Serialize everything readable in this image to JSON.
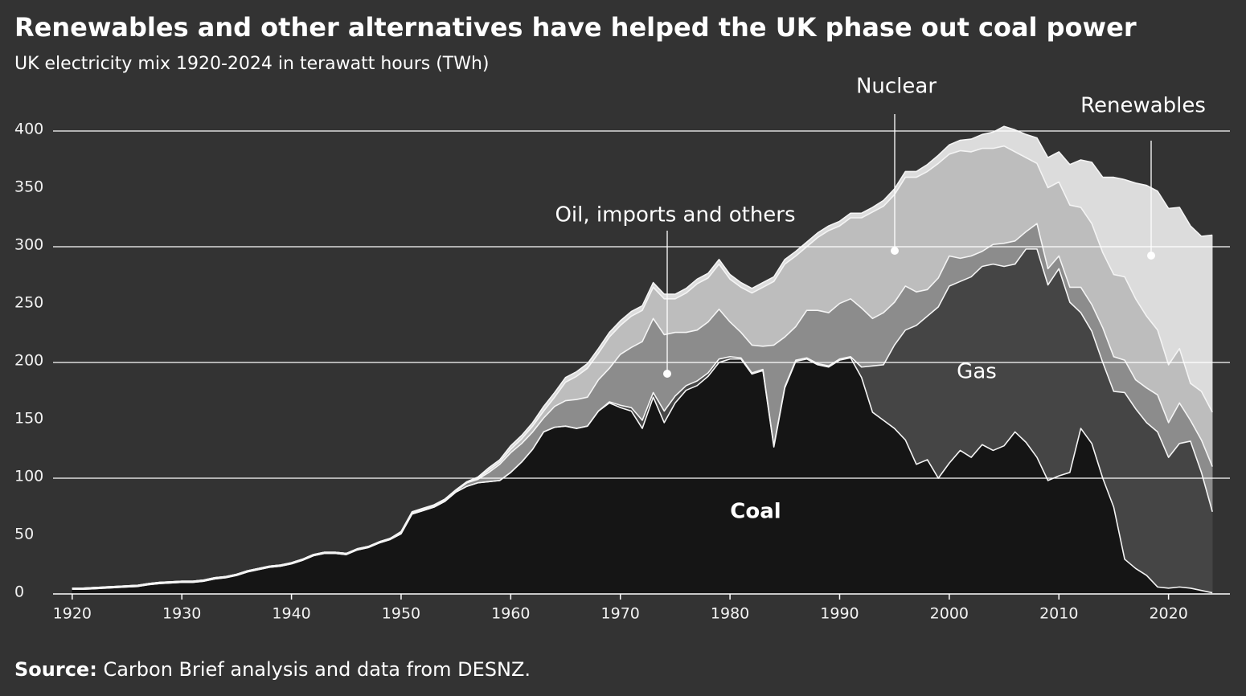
{
  "chart_data": {
    "type": "stacked-area",
    "title": "Renewables and other alternatives have helped the UK phase out coal power",
    "subtitle": "UK electricity mix 1920-2024 in terawatt hours (TWh)",
    "source_label": "Source:",
    "source_text": "Carbon Brief analysis and data from DESNZ.",
    "x": [
      1920,
      1921,
      1922,
      1923,
      1924,
      1925,
      1926,
      1927,
      1928,
      1929,
      1930,
      1931,
      1932,
      1933,
      1934,
      1935,
      1936,
      1937,
      1938,
      1939,
      1940,
      1941,
      1942,
      1943,
      1944,
      1945,
      1946,
      1947,
      1948,
      1949,
      1950,
      1951,
      1952,
      1953,
      1954,
      1955,
      1956,
      1957,
      1958,
      1959,
      1960,
      1961,
      1962,
      1963,
      1964,
      1965,
      1966,
      1967,
      1968,
      1969,
      1970,
      1971,
      1972,
      1973,
      1974,
      1975,
      1976,
      1977,
      1978,
      1979,
      1980,
      1981,
      1982,
      1983,
      1984,
      1985,
      1986,
      1987,
      1988,
      1989,
      1990,
      1991,
      1992,
      1993,
      1994,
      1995,
      1996,
      1997,
      1998,
      1999,
      2000,
      2001,
      2002,
      2003,
      2004,
      2005,
      2006,
      2007,
      2008,
      2009,
      2010,
      2011,
      2012,
      2013,
      2014,
      2015,
      2016,
      2017,
      2018,
      2019,
      2020,
      2021,
      2022,
      2023,
      2024
    ],
    "series": [
      {
        "name": "Coal",
        "color": "#151515",
        "values": [
          4,
          4,
          4.5,
          5,
          5.5,
          6,
          6.5,
          8,
          9,
          9.5,
          10,
          10,
          11,
          13,
          14,
          16,
          19,
          21,
          23,
          24,
          26,
          29,
          33,
          35,
          35,
          34,
          38,
          40,
          44,
          47,
          52,
          69,
          72,
          75,
          80,
          88,
          93,
          96,
          97,
          98,
          105,
          114,
          125,
          140,
          144,
          145,
          143,
          145,
          158,
          165,
          161,
          158,
          143,
          170,
          148,
          165,
          176,
          180,
          188,
          200,
          203,
          203,
          190,
          193,
          127,
          178,
          201,
          203,
          198,
          196,
          202,
          204,
          187,
          157,
          150,
          143,
          133,
          112,
          116,
          100,
          113,
          124,
          118,
          129,
          124,
          128,
          140,
          131,
          118,
          98,
          102,
          105,
          143,
          130,
          100,
          75,
          30,
          22,
          16,
          6,
          5,
          6,
          5,
          3,
          1
        ]
      },
      {
        "name": "Gas",
        "color": "#454545",
        "values": [
          0,
          0,
          0,
          0,
          0,
          0,
          0,
          0,
          0,
          0,
          0,
          0,
          0,
          0,
          0,
          0,
          0,
          0,
          0,
          0,
          0,
          0,
          0,
          0,
          0,
          0,
          0,
          0,
          0,
          0,
          0,
          0,
          0,
          0,
          0,
          0,
          0,
          0,
          0,
          0,
          0,
          0,
          0,
          0,
          0,
          0,
          0,
          0,
          0,
          1,
          2,
          3,
          7,
          4,
          10,
          6,
          4,
          4,
          3,
          3,
          2,
          1,
          1,
          1,
          1,
          1,
          1,
          1,
          1,
          1,
          1,
          1,
          9,
          40,
          48,
          72,
          95,
          120,
          124,
          148,
          153,
          146,
          156,
          154,
          161,
          155,
          145,
          167,
          180,
          169,
          179,
          147,
          100,
          97,
          100,
          100,
          144,
          138,
          132,
          134,
          113,
          124,
          127,
          102,
          70
        ]
      },
      {
        "name": "Oil, imports and others",
        "color": "#8c8c8c",
        "values": [
          1,
          1,
          1,
          1,
          1,
          1,
          1,
          1,
          1,
          1,
          1,
          1,
          1,
          1,
          1,
          1,
          1,
          1,
          1,
          1,
          1,
          1,
          1,
          1,
          1,
          1,
          1,
          1,
          1,
          1,
          1,
          1,
          1,
          1,
          1,
          1,
          3,
          3,
          8,
          14,
          17,
          16,
          15,
          12,
          18,
          22,
          25,
          25,
          27,
          29,
          44,
          52,
          68,
          64,
          66,
          55,
          46,
          44,
          44,
          43,
          30,
          22,
          24,
          20,
          87,
          43,
          29,
          41,
          46,
          46,
          48,
          50,
          51,
          41,
          45,
          37,
          38,
          29,
          23,
          25,
          26,
          20,
          18,
          13,
          17,
          20,
          20,
          15,
          22,
          14,
          11,
          13,
          22,
          23,
          30,
          30,
          28,
          25,
          30,
          32,
          30,
          35,
          18,
          28,
          39
        ]
      },
      {
        "name": "Nuclear",
        "color": "#bdbdbd",
        "values": [
          0,
          0,
          0,
          0,
          0,
          0,
          0,
          0,
          0,
          0,
          0,
          0,
          0,
          0,
          0,
          0,
          0,
          0,
          0,
          0,
          0,
          0,
          0,
          0,
          0,
          0,
          0,
          0,
          0,
          0,
          0,
          0,
          0,
          0,
          0,
          0,
          0,
          1,
          2,
          2,
          3,
          4,
          5,
          6,
          8,
          16,
          20,
          25,
          23,
          27,
          25,
          27,
          27,
          27,
          31,
          29,
          34,
          40,
          38,
          39,
          37,
          39,
          45,
          51,
          55,
          63,
          61,
          55,
          63,
          71,
          67,
          70,
          78,
          92,
          92,
          93,
          94,
          99,
          102,
          99,
          88,
          93,
          90,
          89,
          83,
          84,
          77,
          64,
          52,
          70,
          64,
          71,
          69,
          70,
          65,
          71,
          72,
          70,
          62,
          56,
          50,
          47,
          32,
          42,
          47
        ]
      },
      {
        "name": "Renewables",
        "color": "#dcdcdc",
        "values": [
          0,
          0,
          0,
          0,
          0,
          0,
          0,
          0,
          0,
          0,
          0,
          0,
          0,
          0,
          0,
          0,
          0,
          0,
          0,
          0,
          0,
          0,
          0,
          0,
          0,
          0,
          0,
          0,
          0,
          0,
          1,
          1,
          1,
          1,
          1,
          1,
          1,
          1,
          2,
          2,
          3,
          3,
          3,
          4,
          4,
          4,
          4,
          4,
          4,
          4,
          4,
          4,
          4,
          4,
          4,
          4,
          4,
          4,
          4,
          4,
          4,
          4,
          4,
          4,
          4,
          4,
          4,
          4,
          4,
          4,
          4,
          4,
          4,
          4,
          5,
          5,
          5,
          5,
          6,
          7,
          8,
          9,
          11,
          12,
          14,
          17,
          19,
          20,
          22,
          26,
          26,
          35,
          41,
          53,
          65,
          84,
          84,
          100,
          113,
          120,
          135,
          122,
          136,
          134,
          153
        ]
      }
    ],
    "xlim": [
      1918.4,
      2025.6
    ],
    "xticks": [
      1920,
      1930,
      1940,
      1950,
      1960,
      1970,
      1980,
      1990,
      2000,
      2010,
      2020
    ],
    "ylim": [
      0,
      400
    ],
    "yticks": [
      0,
      50,
      100,
      150,
      200,
      250,
      300,
      350,
      400
    ],
    "grid": true
  }
}
